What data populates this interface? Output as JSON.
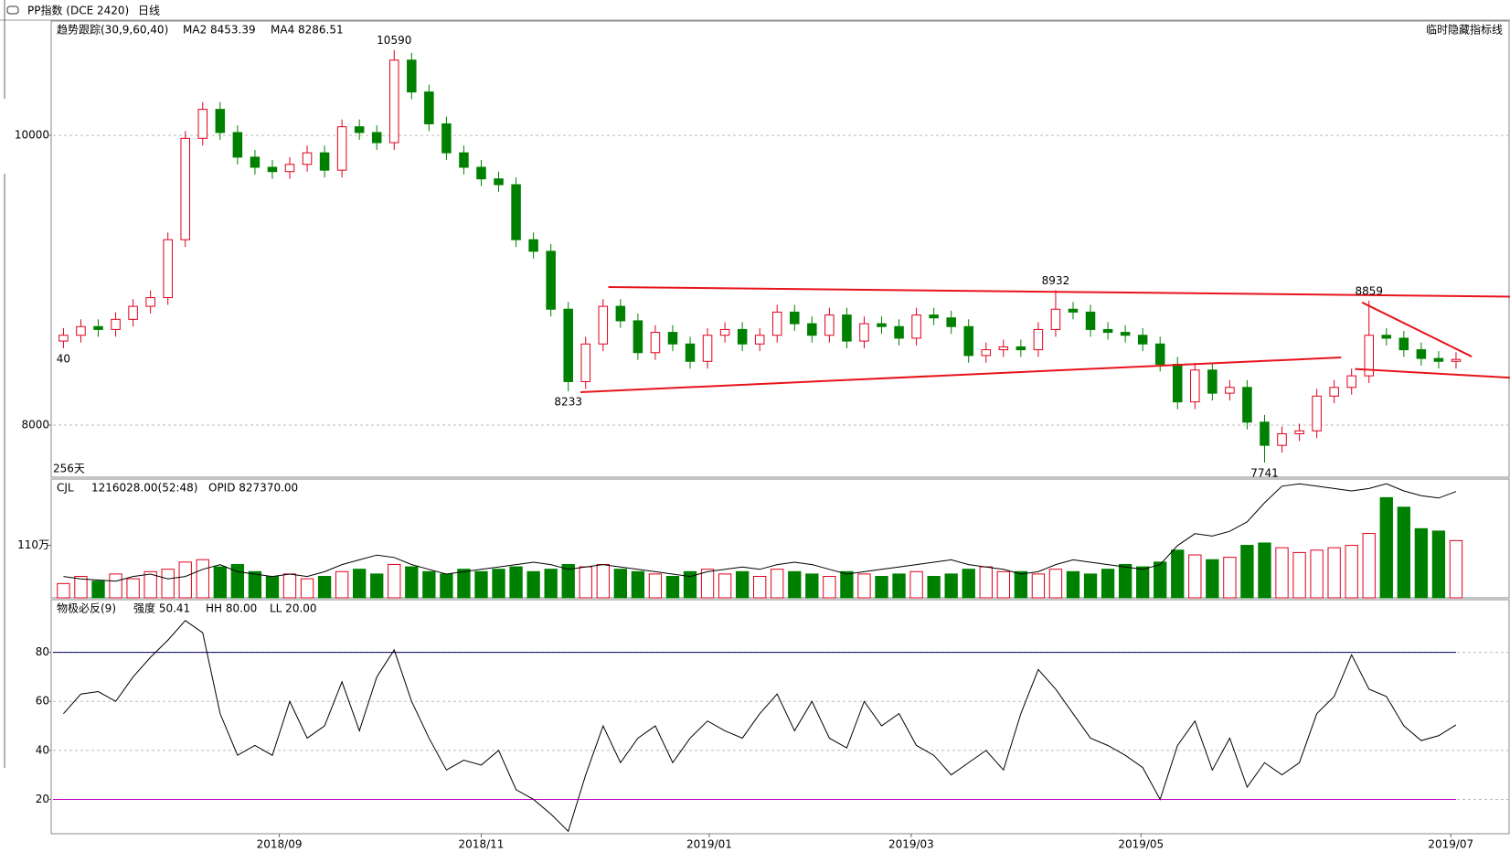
{
  "toolbar": {
    "symbol": "PP指数  (DCE 2420)",
    "period": "日线"
  },
  "chart_data": [
    {
      "type": "candlestick",
      "header": [
        "趋势跟踪(30,9,60,40)",
        "MA2 8453.39",
        "MA4 8286.51"
      ],
      "side_label": "临时隐藏指标线",
      "period_label": "256天",
      "open": [
        8580,
        8620,
        8680,
        8660,
        8730,
        8820,
        8880,
        9280,
        9980,
        10180,
        10020,
        9850,
        9780,
        9750,
        9800,
        9880,
        9760,
        10060,
        10020,
        9950,
        10520,
        10300,
        10080,
        9880,
        9780,
        9700,
        9660,
        9280,
        9200,
        8800,
        8300,
        8560,
        8820,
        8720,
        8500,
        8640,
        8560,
        8440,
        8620,
        8660,
        8560,
        8620,
        8780,
        8700,
        8620,
        8760,
        8580,
        8700,
        8680,
        8600,
        8760,
        8740,
        8680,
        8480,
        8520,
        8540,
        8520,
        8660,
        8800,
        8780,
        8660,
        8640,
        8620,
        8560,
        8420,
        8160,
        8380,
        8220,
        8260,
        8020,
        7860,
        7940,
        7960,
        8200,
        8260,
        8340,
        8620,
        8600,
        8520,
        8460,
        8440
      ],
      "high": [
        8670,
        8730,
        8730,
        8780,
        8870,
        8930,
        9330,
        10030,
        10230,
        10230,
        10070,
        9900,
        9830,
        9850,
        9930,
        9930,
        10110,
        10110,
        10070,
        10590,
        10570,
        10350,
        10130,
        9930,
        9830,
        9750,
        9710,
        9330,
        9250,
        8850,
        8610,
        8870,
        8870,
        8770,
        8690,
        8690,
        8610,
        8670,
        8710,
        8710,
        8670,
        8830,
        8830,
        8750,
        8810,
        8810,
        8750,
        8750,
        8730,
        8810,
        8810,
        8790,
        8730,
        8570,
        8590,
        8590,
        8710,
        8932,
        8850,
        8830,
        8710,
        8690,
        8670,
        8610,
        8470,
        8430,
        8430,
        8310,
        8310,
        8070,
        7990,
        8010,
        8250,
        8310,
        8390,
        8859,
        8670,
        8650,
        8570,
        8510,
        8503
      ],
      "low": [
        8530,
        8570,
        8610,
        8610,
        8680,
        8770,
        8830,
        9230,
        9930,
        9970,
        9800,
        9730,
        9700,
        9700,
        9750,
        9710,
        9710,
        9970,
        9900,
        9900,
        10250,
        10030,
        9830,
        9730,
        9650,
        9610,
        9230,
        9150,
        8750,
        8233,
        8250,
        8510,
        8670,
        8450,
        8450,
        8510,
        8390,
        8390,
        8570,
        8510,
        8510,
        8570,
        8650,
        8570,
        8570,
        8530,
        8530,
        8630,
        8550,
        8550,
        8690,
        8630,
        8430,
        8430,
        8470,
        8470,
        8470,
        8610,
        8730,
        8610,
        8590,
        8570,
        8510,
        8370,
        8110,
        8110,
        8170,
        8170,
        7970,
        7741,
        7810,
        7890,
        7910,
        8150,
        8210,
        8290,
        8550,
        8470,
        8410,
        8390,
        8390
      ],
      "close": [
        8620,
        8680,
        8660,
        8730,
        8820,
        8880,
        9280,
        9980,
        10180,
        10020,
        9850,
        9780,
        9750,
        9800,
        9880,
        9760,
        10060,
        10020,
        9950,
        10520,
        10300,
        10080,
        9880,
        9780,
        9700,
        9660,
        9280,
        9200,
        8800,
        8300,
        8560,
        8820,
        8720,
        8500,
        8640,
        8560,
        8440,
        8620,
        8660,
        8560,
        8620,
        8780,
        8700,
        8620,
        8760,
        8580,
        8700,
        8680,
        8600,
        8760,
        8740,
        8680,
        8480,
        8520,
        8540,
        8520,
        8660,
        8800,
        8780,
        8660,
        8640,
        8620,
        8560,
        8420,
        8160,
        8380,
        8220,
        8260,
        8020,
        7860,
        7940,
        7960,
        8200,
        8260,
        8340,
        8620,
        8600,
        8520,
        8460,
        8440,
        8453
      ],
      "up_color": "#e0001b",
      "down_color": "#008000",
      "ylim": [
        7640,
        10790
      ],
      "yticks": [
        8000,
        10000
      ],
      "xlim": [
        -0.6,
        83.1
      ],
      "grid": true,
      "annotations": [
        {
          "label": "10590",
          "index": 19
        },
        {
          "label": "8233",
          "index": 29
        },
        {
          "label": "8932",
          "index": 57
        },
        {
          "label": "7741",
          "index": 69
        },
        {
          "label": "8859",
          "index": 75
        },
        {
          "label": "40",
          "index": 0
        }
      ],
      "trendlines": [
        {
          "x": [
            31.3,
            83.1
          ],
          "y": [
            8953,
            8887
          ]
        },
        {
          "x": [
            29.7,
            73.4
          ],
          "y": [
            8227,
            8467
          ]
        },
        {
          "x": [
            74.2,
            83.1
          ],
          "y": [
            8387,
            8327
          ]
        },
        {
          "x": [
            74.6,
            80.9
          ],
          "y": [
            8847,
            8473
          ]
        }
      ],
      "trendline_color": "#e8141c"
    },
    {
      "type": "volume",
      "header": [
        "CJL",
        "1216028.00(52:48)",
        "OPID 827370.00"
      ],
      "values": [
        300000,
        450000,
        350000,
        500000,
        400000,
        550000,
        600000,
        750000,
        800000,
        650000,
        700000,
        550000,
        450000,
        500000,
        400000,
        450000,
        550000,
        600000,
        500000,
        700000,
        650000,
        550000,
        500000,
        600000,
        550000,
        600000,
        650000,
        550000,
        600000,
        700000,
        650000,
        700000,
        600000,
        550000,
        500000,
        450000,
        550000,
        600000,
        500000,
        550000,
        450000,
        600000,
        550000,
        500000,
        450000,
        550000,
        500000,
        450000,
        500000,
        550000,
        450000,
        500000,
        600000,
        650000,
        550000,
        550000,
        500000,
        600000,
        550000,
        500000,
        600000,
        700000,
        650000,
        750000,
        1000000,
        900000,
        800000,
        850000,
        1100000,
        1150000,
        1050000,
        950000,
        1000000,
        1050000,
        1100000,
        1350000,
        2100000,
        1900000,
        1450000,
        1400000,
        1200000
      ],
      "ylim": [
        0,
        2490000
      ],
      "yticks": [
        {
          "value": 1100000,
          "label": "110万"
        }
      ],
      "line": {
        "values": [
          470000,
          460000,
          455000,
          450000,
          470000,
          480000,
          460000,
          470000,
          500000,
          520000,
          490000,
          480000,
          470000,
          480000,
          470000,
          490000,
          520000,
          540000,
          560000,
          550000,
          520000,
          500000,
          480000,
          490000,
          500000,
          510000,
          520000,
          530000,
          520000,
          500000,
          510000,
          520000,
          510000,
          500000,
          490000,
          480000,
          470000,
          490000,
          500000,
          510000,
          500000,
          520000,
          530000,
          520000,
          500000,
          480000,
          490000,
          500000,
          510000,
          520000,
          530000,
          540000,
          520000,
          510000,
          500000,
          480000,
          490000,
          520000,
          540000,
          530000,
          520000,
          510000,
          500000,
          520000,
          600000,
          650000,
          640000,
          660000,
          700000,
          780000,
          850000,
          860000,
          850000,
          840000,
          830000,
          840000,
          860000,
          830000,
          810000,
          800000,
          827370
        ],
        "color": "#000000"
      },
      "y2lim": [
        380000,
        880000
      ]
    },
    {
      "type": "line",
      "header": [
        "物极必反(9)",
        "强度 50.41",
        "HH 80.00",
        "LL 20.00"
      ],
      "header_colors": [
        "#000000",
        "#000000",
        "#000080",
        "#c000c0"
      ],
      "values": [
        55,
        63,
        64,
        60,
        70,
        78,
        85,
        93,
        88,
        55,
        38,
        42,
        38,
        60,
        45,
        50,
        68,
        48,
        70,
        81,
        60,
        45,
        32,
        36,
        34,
        40,
        24,
        20,
        14,
        7,
        30,
        50,
        35,
        45,
        50,
        35,
        45,
        52,
        48,
        45,
        55,
        63,
        48,
        60,
        45,
        41,
        60,
        50,
        55,
        42,
        38,
        30,
        35,
        40,
        32,
        55,
        73,
        65,
        55,
        45,
        42,
        38,
        33,
        20,
        42,
        52,
        32,
        45,
        25,
        35,
        30,
        35,
        55,
        62,
        79,
        65,
        62,
        50,
        44,
        46,
        50.41
      ],
      "color": "#000000",
      "ylim": [
        6,
        101.5
      ],
      "yticks": [
        20,
        40,
        60,
        80
      ],
      "grid": true,
      "hlines": [
        {
          "value": 80,
          "color": "#000060"
        },
        {
          "value": 20,
          "color": "#c000c0"
        }
      ],
      "xticks": [
        {
          "value": 12.4,
          "label": "2018/09"
        },
        {
          "value": 24,
          "label": "2018/11"
        },
        {
          "value": 37.1,
          "label": "2019/01"
        },
        {
          "value": 48.7,
          "label": "2019/03"
        },
        {
          "value": 61.9,
          "label": "2019/05"
        },
        {
          "value": 79.7,
          "label": "2019/07"
        }
      ]
    }
  ]
}
